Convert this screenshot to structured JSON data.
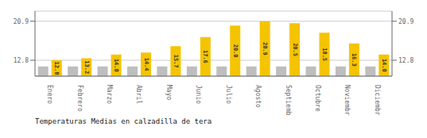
{
  "chart_data": {
    "type": "bar",
    "title": "Temperaturas Medias en calzadilla de tera",
    "categories": [
      "Enero",
      "Febrero",
      "Marzo",
      "Abril",
      "Mayo",
      "Junio",
      "Julio",
      "Agosto",
      "Septiembre",
      "Octubre",
      "Noviembre",
      "Diciembre"
    ],
    "series": [
      {
        "color": "#BEBEBE",
        "values": [
          11.5,
          11.5,
          11.5,
          11.5,
          11.5,
          11.5,
          11.5,
          11.5,
          11.5,
          11.5,
          11.5,
          11.5
        ]
      },
      {
        "color": "#F5C400",
        "values": [
          12.8,
          13.2,
          14.0,
          14.4,
          15.7,
          17.6,
          20.0,
          20.9,
          20.5,
          18.5,
          16.3,
          14.0
        ],
        "value_labels": [
          "12.8",
          "13.2",
          "14.0",
          "14.4",
          "15.7",
          "17.6",
          "20.0",
          "20.9",
          "20.5",
          "18.5",
          "16.3",
          "14.0"
        ],
        "data_labels": true
      }
    ],
    "ylim": [
      9.5,
      23.0
    ],
    "yticks": [
      12.8,
      20.9
    ],
    "grid": true
  }
}
